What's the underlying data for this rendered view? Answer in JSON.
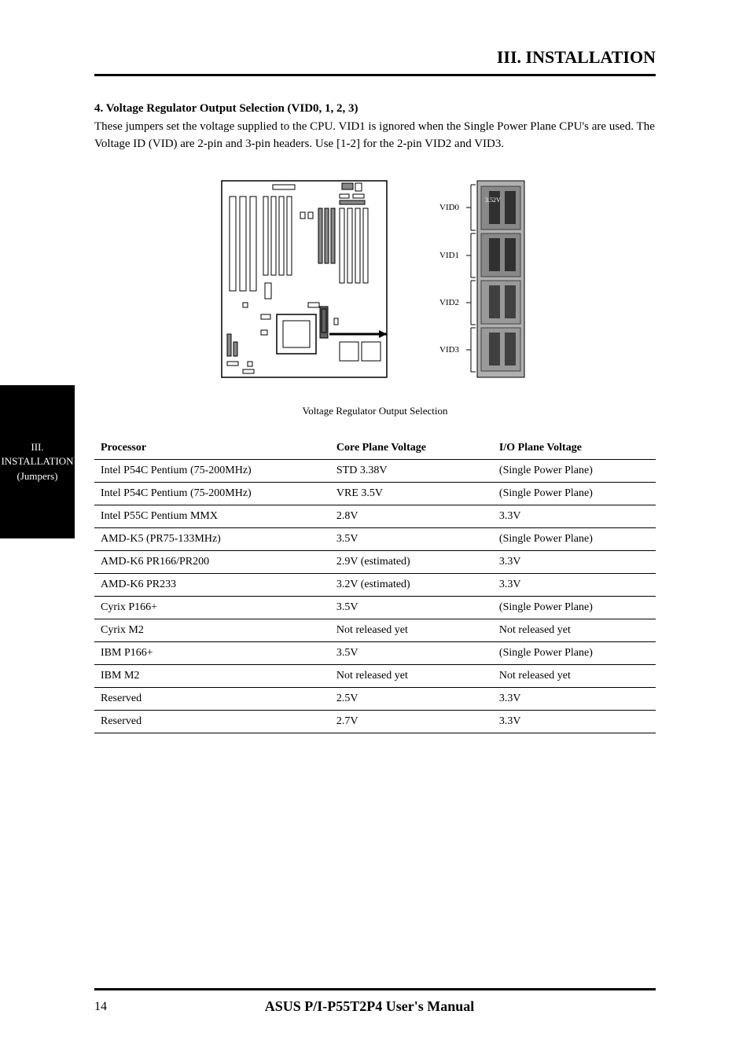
{
  "header": {
    "section_title": "III. INSTALLATION"
  },
  "section4": {
    "para1_bold": "4. Voltage Regulator Output Selection (VID0, 1, 2, 3)",
    "para1_text": "These jumpers set the voltage supplied to the CPU. VID1 is ignored when the Single Power Plane CPU's are used. The Voltage ID (VID) are 2-pin and 3-pin headers. Use [1-2] for the 2-pin VID2 and VID3."
  },
  "figure": {
    "caption": "Voltage Regulator Output Selection",
    "arrow_label": "",
    "vid0_label": "VID0",
    "vid1_label": "VID1",
    "vid2_label": "VID2",
    "vid3_label": "VID3",
    "vid_text": "VID"
  },
  "side_tab": {
    "line1": "III. INSTALLATION",
    "line2": "(Jumpers)"
  },
  "table": {
    "headers": {
      "col1": "Processor",
      "col2": "Core Plane Voltage",
      "col3": "I/O Plane Voltage"
    },
    "rows": [
      {
        "col1": "Intel P54C Pentium (75-200MHz)",
        "col2": "STD 3.38V",
        "col3": "(Single Power Plane)"
      },
      {
        "col1": "Intel P54C Pentium (75-200MHz)",
        "col2": "VRE 3.5V",
        "col3": "(Single Power Plane)"
      },
      {
        "col1": "Intel P55C Pentium MMX",
        "col2": "2.8V",
        "col3": "3.3V"
      },
      {
        "col1": "AMD-K5 (PR75-133MHz)",
        "col2": "3.5V",
        "col3": "(Single Power Plane)"
      },
      {
        "col1": "AMD-K6 PR166/PR200",
        "col2": "2.9V (estimated)",
        "col3": "3.3V"
      },
      {
        "col1": "AMD-K6 PR233",
        "col2": "3.2V (estimated)",
        "col3": "3.3V"
      },
      {
        "col1": "Cyrix P166+",
        "col2": "3.5V",
        "col3": "(Single Power Plane)"
      },
      {
        "col1": "Cyrix M2",
        "col2": "Not released yet",
        "col3": "Not released yet"
      },
      {
        "col1": "IBM P166+",
        "col2": "3.5V",
        "col3": "(Single Power Plane)"
      },
      {
        "col1": "IBM M2",
        "col2": "Not released yet",
        "col3": "Not released yet"
      },
      {
        "col1": "Reserved",
        "col2": "2.5V",
        "col3": "3.3V"
      },
      {
        "col1": "Reserved",
        "col2": "2.7V",
        "col3": "3.3V"
      }
    ]
  },
  "footer": {
    "page_number": "14",
    "title": "ASUS P/I-P55T2P4 User's Manual"
  },
  "colors": {
    "black": "#000000",
    "white": "#ffffff",
    "gray": "#808080",
    "darkgray": "#4a4a4a"
  }
}
